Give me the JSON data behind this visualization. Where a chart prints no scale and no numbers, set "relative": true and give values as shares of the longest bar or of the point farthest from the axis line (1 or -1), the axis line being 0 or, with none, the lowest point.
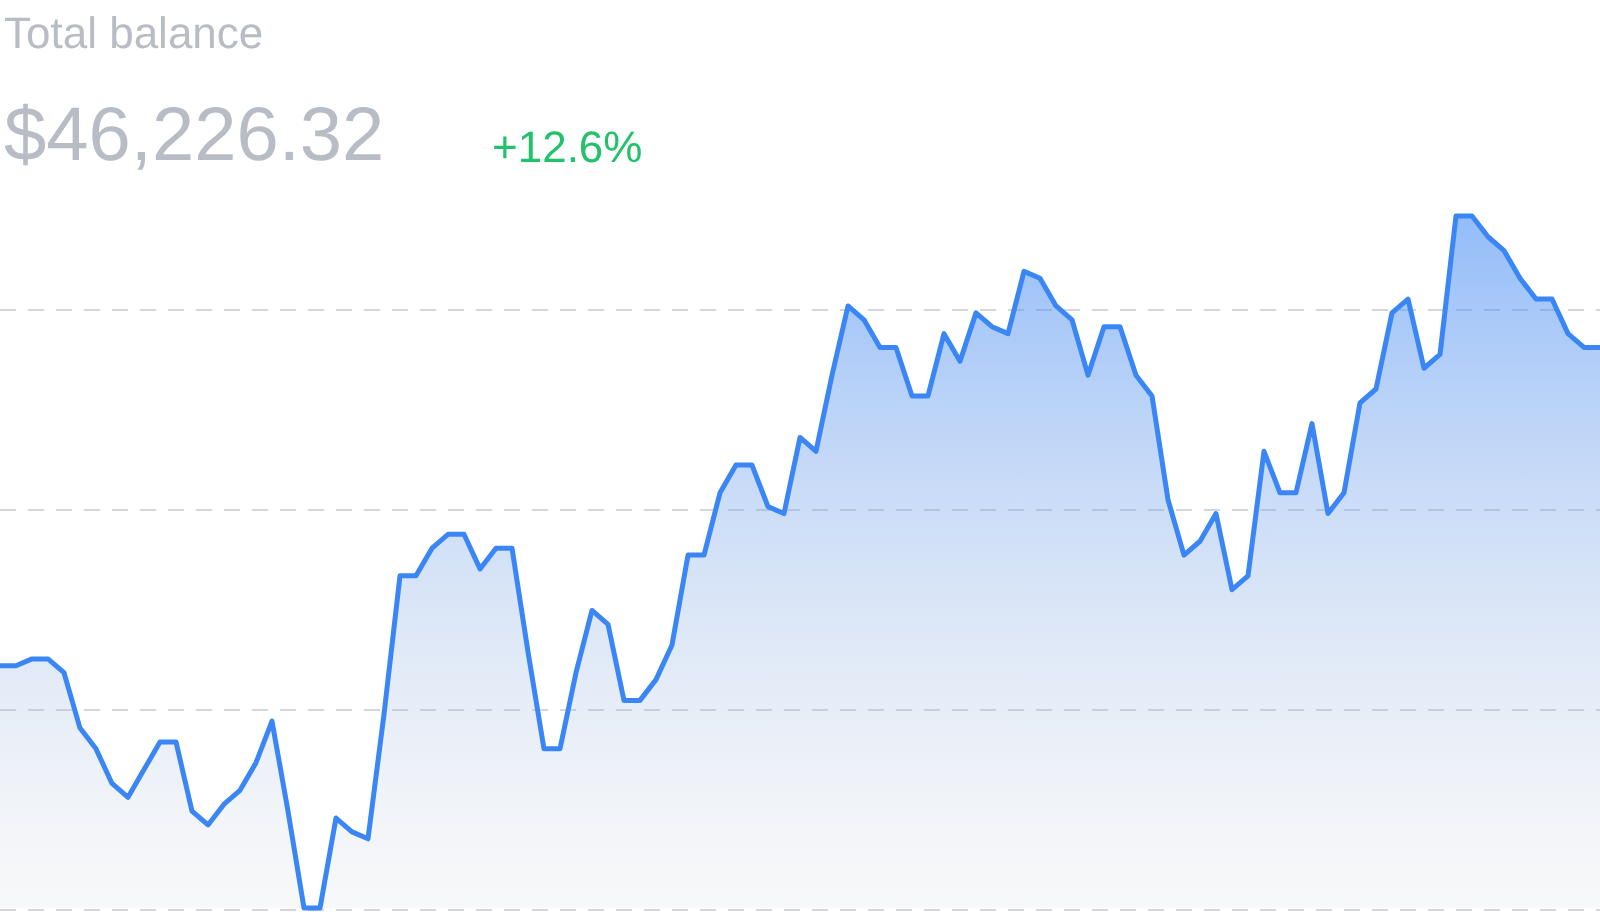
{
  "chart_data": {
    "type": "area",
    "title": "Total balance",
    "subtitle": "$46,226.32",
    "annotations": [
      "+12.6%"
    ],
    "relative": true,
    "grid": "y",
    "categories": [
      null,
      null,
      null,
      null,
      null,
      null,
      null,
      null,
      null,
      null,
      null,
      null,
      null,
      null,
      null,
      null,
      null,
      null,
      null,
      null,
      null,
      null,
      null,
      null,
      null,
      null,
      null,
      null,
      null,
      null,
      null,
      null,
      null,
      null,
      null,
      null,
      null,
      null,
      null,
      null,
      null,
      null,
      null,
      null,
      null,
      null,
      null,
      null,
      null,
      null,
      null,
      null,
      null,
      null,
      null,
      null,
      null,
      null,
      null,
      null,
      null,
      null,
      null,
      null,
      null,
      null,
      null,
      null,
      null,
      null,
      null,
      null,
      null,
      null,
      null,
      null,
      null,
      null,
      null,
      null,
      null,
      null,
      null,
      null,
      null,
      null,
      null,
      null,
      null,
      null,
      null,
      null,
      null,
      null,
      null,
      null,
      null,
      null,
      null,
      null,
      null
    ],
    "series": [
      {
        "color": "#3b86f5",
        "values": [
          0.35,
          0.35,
          0.36,
          0.36,
          0.34,
          0.26,
          0.23,
          0.18,
          0.16,
          0.2,
          0.24,
          0.24,
          0.14,
          0.12,
          0.15,
          0.17,
          0.21,
          0.27,
          0.14,
          0,
          0,
          0.13,
          0.11,
          0.1,
          0.28,
          0.48,
          0.48,
          0.52,
          0.54,
          0.54,
          0.49,
          0.52,
          0.52,
          0.37,
          0.23,
          0.23,
          0.34,
          0.43,
          0.41,
          0.3,
          0.3,
          0.33,
          0.38,
          0.51,
          0.51,
          0.6,
          0.64,
          0.64,
          0.58,
          0.57,
          0.68,
          0.66,
          0.77,
          0.87,
          0.85,
          0.81,
          0.81,
          0.74,
          0.74,
          0.83,
          0.79,
          0.86,
          0.84,
          0.83,
          0.92,
          0.91,
          0.87,
          0.85,
          0.77,
          0.84,
          0.84,
          0.77,
          0.74,
          0.59,
          0.51,
          0.53,
          0.57,
          0.46,
          0.48,
          0.66,
          0.6,
          0.6,
          0.7,
          0.57,
          0.6,
          0.73,
          0.75,
          0.86,
          0.88,
          0.78,
          0.8,
          1,
          1,
          0.97,
          0.95,
          0.91,
          0.88,
          0.88,
          0.83,
          0.81,
          0.81
        ]
      }
    ]
  }
}
